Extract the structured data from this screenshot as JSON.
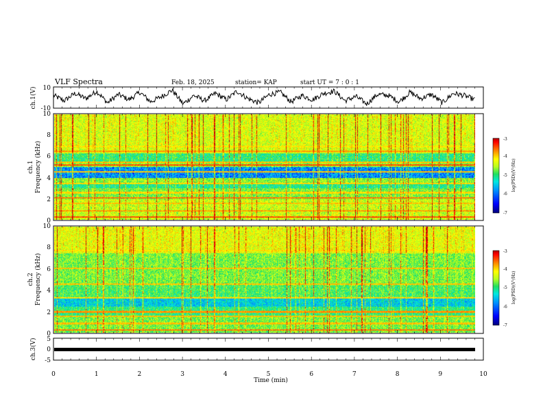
{
  "header": {
    "title": "VLF Spectra",
    "date": "Feb. 18, 2025",
    "station": "station= KAP",
    "start": "start  UT =   7 : 0  : 1"
  },
  "chart_data": [
    {
      "type": "line",
      "name": "ch1-waveform",
      "ylabel": "ch.1(V)",
      "ylim": [
        -10,
        10
      ],
      "yticks": [
        "10",
        "-10"
      ],
      "xlim": [
        0,
        10
      ],
      "note": "noisy waveform envelope roughly within -8..+8 V over 0 - 9.8 min",
      "values": [
        2,
        -3,
        4,
        -1,
        6,
        -5,
        3,
        -2,
        5,
        -4,
        1,
        7,
        -6,
        2,
        -3,
        4,
        -2,
        6,
        -1,
        -5,
        3,
        5,
        -4,
        2,
        -2,
        4,
        6,
        -3,
        1,
        -6,
        3,
        2,
        -4,
        5,
        -1,
        3,
        -5,
        4,
        2,
        -2
      ]
    },
    {
      "type": "heatmap",
      "name": "ch1-spectrogram",
      "ylabel_channel": "ch.1",
      "ylabel": "Frequency (kHz)",
      "ylim": [
        0,
        10
      ],
      "yticks": [
        "0",
        "2",
        "4",
        "6",
        "8",
        "10"
      ],
      "xlim": [
        0,
        10
      ],
      "colorbar": {
        "label": "log(PSD)(V²/Hz)",
        "ticks": [
          "-3",
          "-4",
          "-5",
          "-6",
          "-7"
        ],
        "range": [
          -7,
          -3
        ]
      }
    },
    {
      "type": "heatmap",
      "name": "ch2-spectrogram",
      "ylabel_channel": "ch.2",
      "ylabel": "Frequency (kHz)",
      "ylim": [
        0,
        10
      ],
      "yticks": [
        "0",
        "2",
        "4",
        "6",
        "8",
        "10"
      ],
      "xlim": [
        0,
        10
      ],
      "colorbar": {
        "label": "log(PSD)(V²/Hz)",
        "ticks": [
          "-3",
          "-4",
          "-5",
          "-6",
          "-7"
        ],
        "range": [
          -7,
          -3
        ]
      }
    },
    {
      "type": "line",
      "name": "ch3-signal",
      "ylabel": "ch.3(V)",
      "ylim": [
        -5,
        5
      ],
      "yticks": [
        "5",
        "0",
        "-5"
      ],
      "xlim": [
        0,
        10
      ],
      "values": [
        -0.5,
        -0.5
      ]
    }
  ],
  "xaxis": {
    "label": "Time  (min)",
    "ticks": [
      "0",
      "1",
      "2",
      "3",
      "4",
      "5",
      "6",
      "7",
      "8",
      "9",
      "10"
    ]
  },
  "colors": {
    "line": "#000000",
    "cmap": [
      "#00007a",
      "#0000ff",
      "#0090ff",
      "#00e8e0",
      "#20e060",
      "#b8ff20",
      "#ffff00",
      "#ff8000",
      "#ff0000",
      "#b00000"
    ]
  }
}
